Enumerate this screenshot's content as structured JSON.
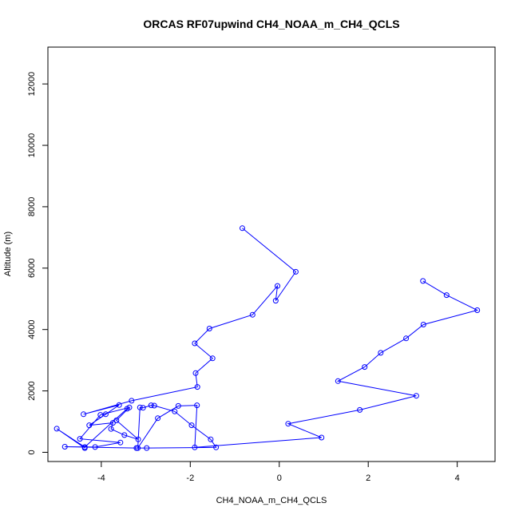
{
  "chart_data": {
    "type": "line",
    "title": "ORCAS RF07upwind CH4_NOAA_m_CH4_QCLS",
    "xlabel": "CH4_NOAA_m_CH4_QCLS",
    "ylabel": "Altitude (m)",
    "xlim": [
      -5.2,
      4.85
    ],
    "ylim": [
      -300,
      13200
    ],
    "xticks": [
      -4,
      -2,
      0,
      2,
      4
    ],
    "xtick_labels": [
      "-4",
      "-2",
      "0",
      "2",
      "4"
    ],
    "yticks": [
      0,
      2000,
      4000,
      6000,
      8000,
      10000,
      12000
    ],
    "ytick_labels": [
      "0",
      "2000",
      "4000",
      "6000",
      "8000",
      "10000",
      "12000"
    ],
    "grid": false,
    "color": "#0000ff",
    "series": [
      {
        "x": [
          -0.83,
          0.37,
          -0.08,
          -0.04,
          -0.6,
          -1.57,
          -1.9,
          -1.5,
          -1.88,
          -1.84,
          -3.32,
          -4.4,
          -3.6,
          -3.9,
          -4.27,
          -3.74,
          -3.78,
          -3.48,
          -3.17,
          -3.66,
          -3.37,
          -4.02,
          -4.48,
          -3.57,
          -4.14,
          -4.82,
          -3.21,
          -2.98,
          -1.42,
          -1.54,
          -1.97,
          -2.35,
          -2.81,
          -2.88,
          -3.06,
          -3.13,
          -3.18,
          -2.73,
          -2.27,
          -1.85,
          -1.9,
          0.95,
          0.2,
          1.81,
          3.08,
          1.32,
          1.92,
          2.28,
          2.85,
          3.24,
          4.45,
          3.76,
          3.23
        ],
        "y": [
          7300,
          5880,
          4940,
          5420,
          4480,
          4030,
          3550,
          3060,
          2580,
          2130,
          1680,
          1240,
          1540,
          1240,
          880,
          960,
          760,
          560,
          420,
          1040,
          1460,
          1220,
          440,
          320,
          170,
          180,
          140,
          140,
          160,
          420,
          880,
          1330,
          1520,
          1530,
          1450,
          1460,
          140,
          1110,
          1510,
          1530,
          160,
          480,
          930,
          1380,
          1840,
          2320,
          2780,
          3240,
          3710,
          4160,
          4630,
          5120,
          5580
        ]
      },
      {
        "x": [
          -3.42,
          -4.37,
          -5.0,
          -4.37
        ],
        "y": [
          1420,
          170,
          770,
          140
        ]
      }
    ]
  }
}
